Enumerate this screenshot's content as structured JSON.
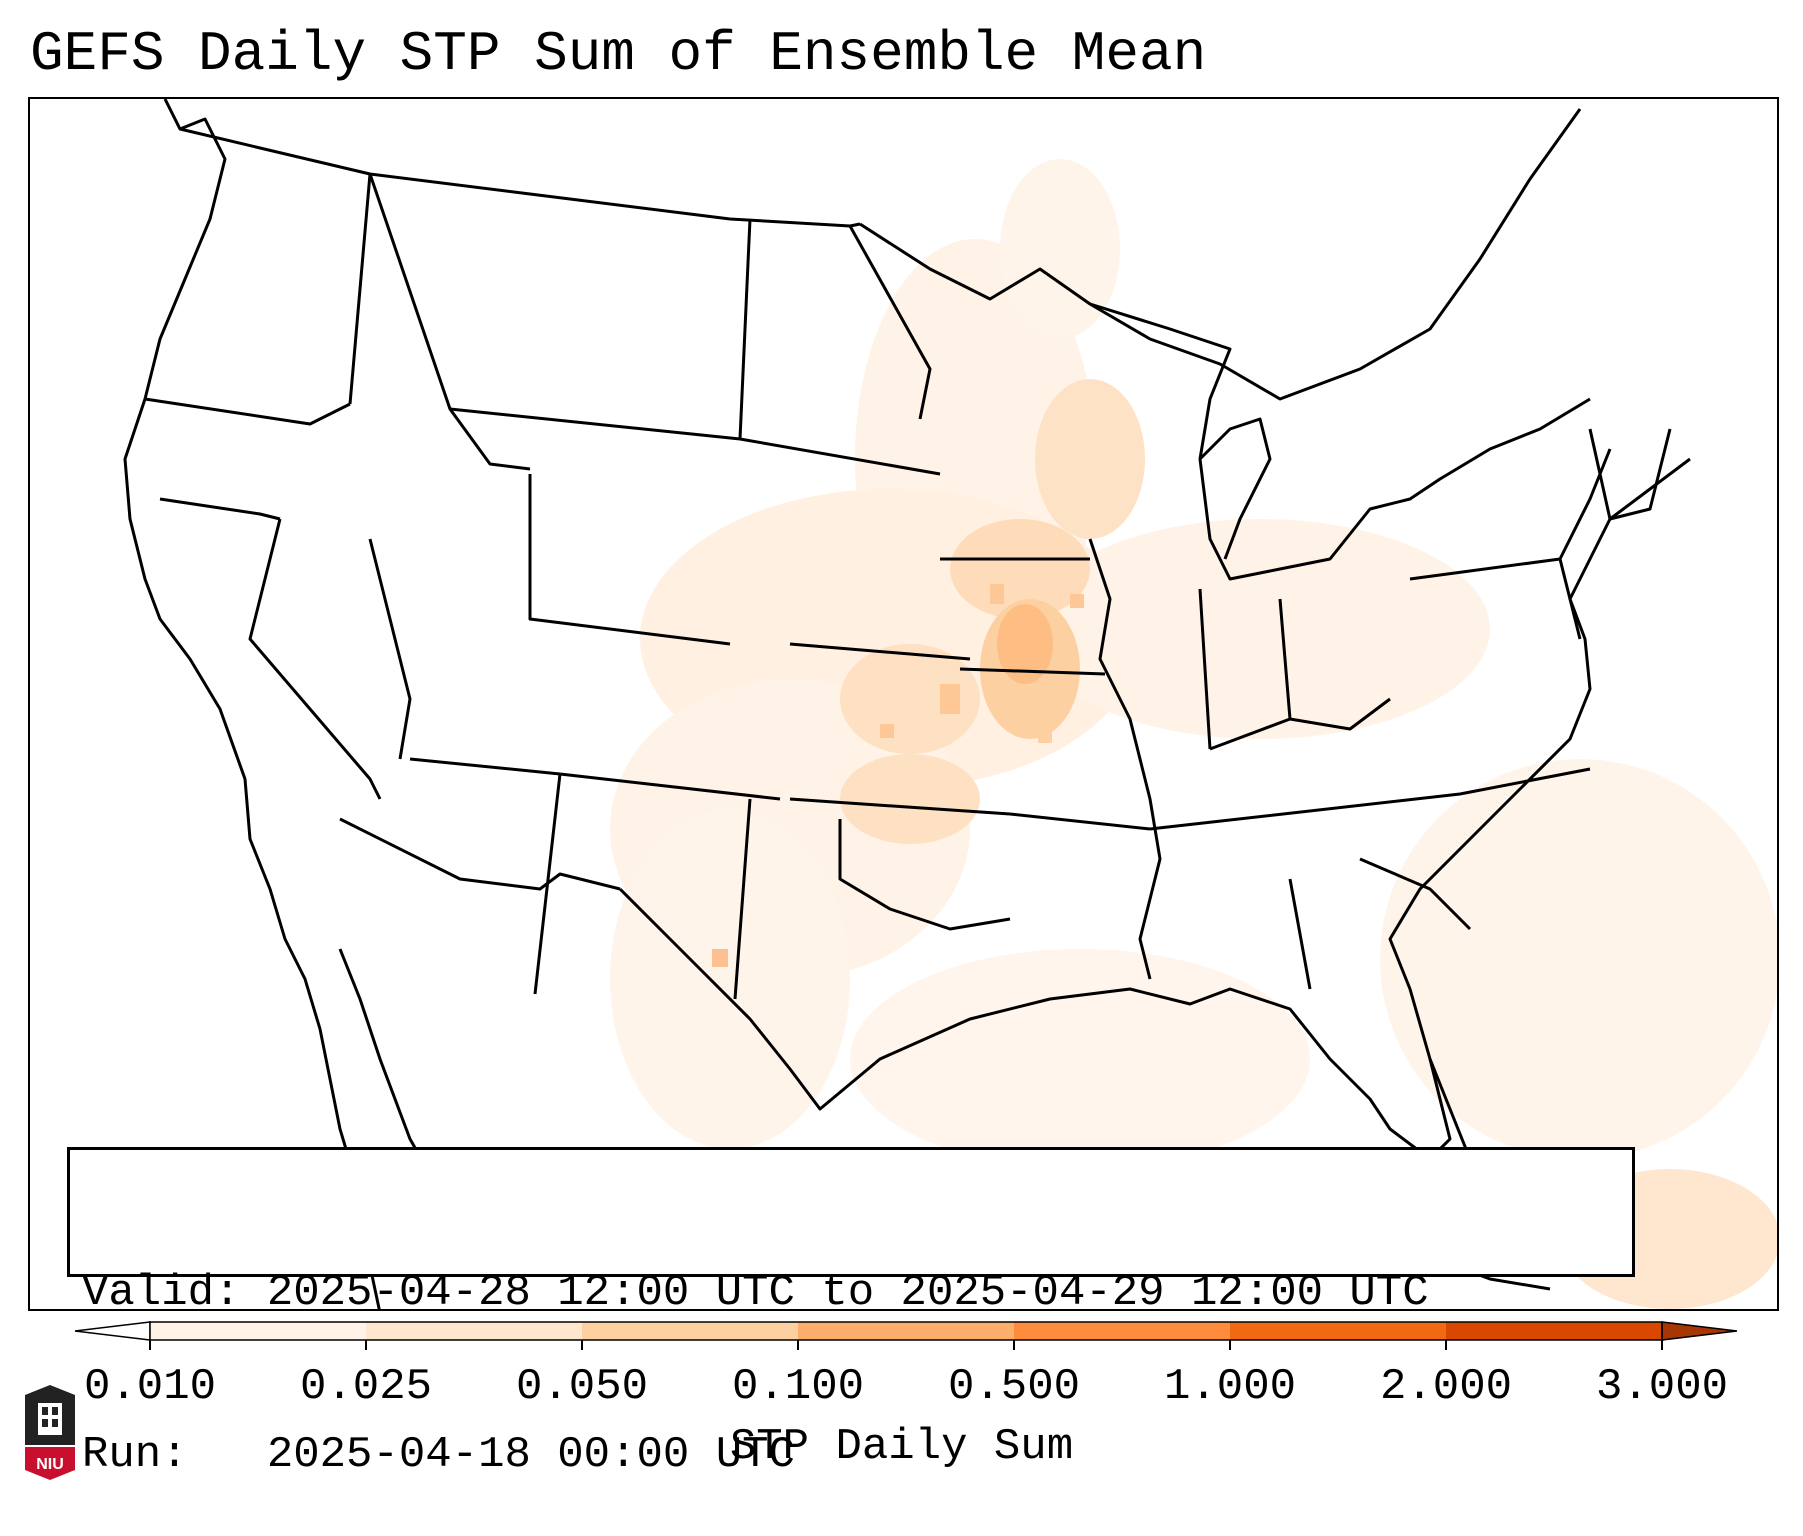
{
  "title": "GEFS Daily STP Sum of Ensemble Mean",
  "info": {
    "valid": "Valid: 2025-04-28 12:00 UTC to 2025-04-29 12:00 UTC",
    "run": "Run:   2025-04-18 00:00 UTC"
  },
  "colorbar": {
    "label": "STP Daily Sum",
    "ticks": [
      "0.010",
      "0.025",
      "0.050",
      "0.100",
      "0.500",
      "1.000",
      "2.000",
      "3.000"
    ],
    "colors": [
      "#fff2e6",
      "#fee6cf",
      "#fdd0a2",
      "#fdae6b",
      "#fd8d3c",
      "#f16913",
      "#d94801"
    ],
    "extend_low_color": "#ffffff",
    "extend_high_color": "#a63603"
  },
  "logo": {
    "text": "NIU",
    "icon": "university-seal-icon"
  },
  "map": {
    "projection": "Lambert Conformal (CONUS)",
    "region": "Contiguous United States",
    "field": "GEFS ensemble mean STP daily sum",
    "hotspots": [
      {
        "name": "Missouri / Kansas",
        "level": "0.100–0.500"
      },
      {
        "name": "Iowa",
        "level": "0.050–0.100"
      },
      {
        "name": "Oklahoma",
        "level": "0.050–0.100"
      },
      {
        "name": "Wisconsin",
        "level": "0.025–0.050"
      },
      {
        "name": "West Texas",
        "level": "0.100–0.500"
      }
    ]
  }
}
